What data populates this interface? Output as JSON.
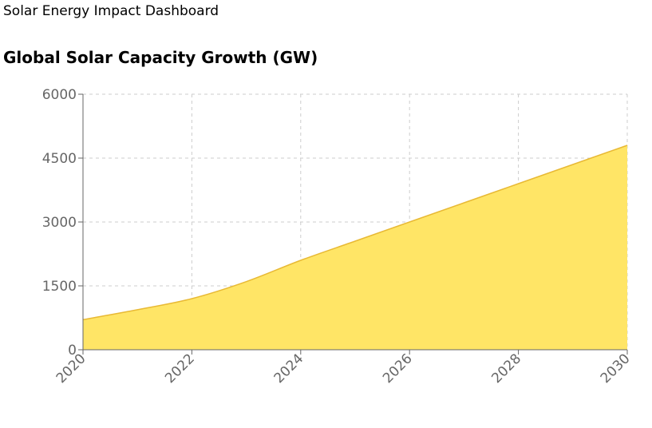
{
  "header": {
    "app_title": "Solar Energy Impact Dashboard"
  },
  "chart_data": {
    "type": "area",
    "title": "Global Solar Capacity Growth (GW)",
    "xlabel": "",
    "ylabel": "",
    "x": [
      2020,
      2021,
      2022,
      2023,
      2024,
      2025,
      2026,
      2027,
      2028,
      2029,
      2030
    ],
    "series": [
      {
        "values": [
          707,
          940,
          1200,
          1600,
          2100,
          2550,
          3000,
          3450,
          3900,
          4350,
          4800
        ]
      }
    ],
    "xlim": [
      2020,
      2030
    ],
    "ylim": [
      0,
      6000
    ],
    "xticks": [
      "2020",
      "2022",
      "2024",
      "2026",
      "2028",
      "2030"
    ],
    "yticks": [
      "0",
      "1500",
      "3000",
      "4500",
      "6000"
    ],
    "grid": true,
    "legend": "none",
    "colors": {
      "fill": "#FFE566",
      "line": "#E8B934",
      "grid": "#CCCCCC",
      "axis": "#666666"
    }
  }
}
